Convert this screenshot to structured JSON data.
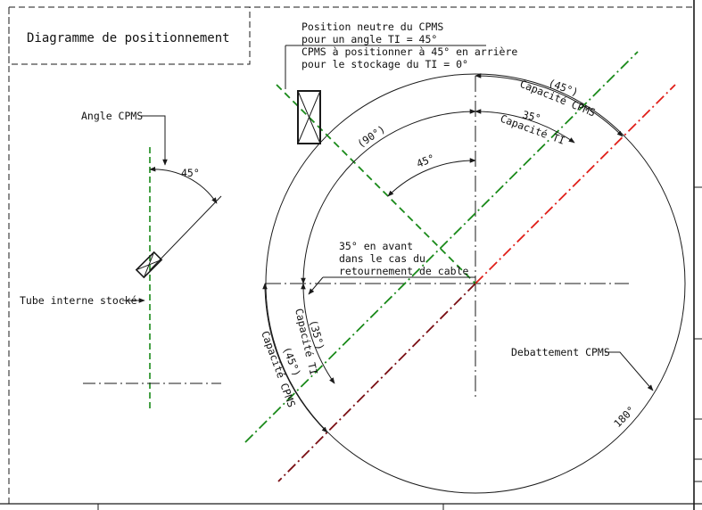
{
  "title": "Diagramme de positionnement",
  "note": {
    "line1": "Position neutre du CPMS",
    "line2": "pour un angle TI = 45°",
    "line3": "CPMS à positionner à 45° en arrière",
    "line4": "pour le stockage du TI = 0°"
  },
  "left_view": {
    "angle_label": "Angle CPMS",
    "angle_value": "45°",
    "tube_label": "Tube interne stocké"
  },
  "main_view": {
    "angle_45": "45°",
    "angle_90": "(90°)",
    "arc_45_cpms": "(45°)",
    "capacite_cpms": "Capacité CPMS",
    "arc_35_ti": "35°",
    "capacite_ti": "Capacité TI",
    "forward_note_1": "35° en avant",
    "forward_note_2": "dans le cas du",
    "forward_note_3": "retournement de cable",
    "left_35": "(35°)",
    "left_capacite_ti": "Capacité TI",
    "left_45": "(45°)",
    "left_capacite_cpms": "Capacité CPMS",
    "debattement": "Debattement CPMS",
    "angle_180": "180°"
  },
  "colors": {
    "line": "#1a1a1a",
    "green": "#1a8a1a",
    "red": "#e0201a",
    "dark_red": "#7a0f14"
  }
}
